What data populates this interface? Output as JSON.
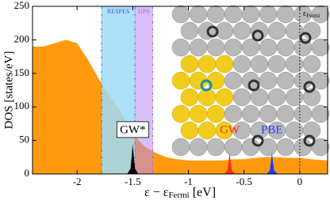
{
  "chart_data": {
    "type": "area",
    "xlabel": {
      "main": "ε − ε",
      "sub": "Fermi",
      "unit": " [eV]"
    },
    "ylabel": "DOS [states/eV]",
    "xlim": [
      -2.4,
      0.25
    ],
    "ylim": [
      0,
      250
    ],
    "xticks": [
      -2,
      -1.5,
      -1,
      -0.5,
      0
    ],
    "yticks": [
      0,
      50,
      100,
      150,
      200,
      250
    ],
    "grid": false,
    "series": [
      {
        "color": "#ff9a0e",
        "x": [
          -2.4,
          -2.3,
          -2.2,
          -2.1,
          -2.0,
          -1.9,
          -1.8,
          -1.7,
          -1.6,
          -1.5,
          -1.4,
          -1.3,
          -1.2,
          -1.1,
          -1.0,
          -0.9,
          -0.8,
          -0.7,
          -0.6,
          -0.5,
          -0.4,
          -0.3,
          -0.2,
          -0.1,
          0,
          0.1,
          0.25
        ],
        "values": [
          190,
          190,
          195,
          200,
          195,
          170,
          140,
          115,
          90,
          60,
          42,
          32,
          25,
          22,
          20,
          20,
          20,
          20,
          22,
          22,
          24,
          25,
          25,
          24,
          24,
          22,
          20
        ]
      },
      {
        "color": "#000000",
        "x": [
          -1.55,
          -1.52,
          -1.51,
          -1.5,
          -1.49,
          -1.48,
          -1.45
        ],
        "values": [
          0,
          8,
          25,
          45,
          25,
          8,
          0
        ]
      },
      {
        "color": "#ff2a1a",
        "x": [
          -0.68,
          -0.65,
          -0.64,
          -0.63,
          -0.62,
          -0.61,
          -0.58
        ],
        "values": [
          0,
          5,
          17,
          32,
          17,
          5,
          0
        ]
      },
      {
        "color": "#1a3cff",
        "x": [
          -0.3,
          -0.27,
          -0.26,
          -0.25,
          -0.24,
          -0.23,
          -0.2
        ],
        "values": [
          0,
          5,
          17,
          32,
          17,
          5,
          0
        ]
      }
    ],
    "regions": [
      {
        "label": "RESPES",
        "x": [
          -1.78,
          -1.48
        ],
        "color": "#9fdcf7",
        "text_color": "#3a5ccf"
      },
      {
        "label": "UPS",
        "x": [
          -1.48,
          -1.32
        ],
        "color": "#b68cf2",
        "text_color": "#9b5fe0"
      }
    ],
    "vline": {
      "x": 0,
      "label": {
        "main": "ε",
        "sub": "Fermi"
      }
    },
    "annotations": [
      {
        "text": "GW*",
        "x": -1.5,
        "y": 52,
        "color": "#000000",
        "boxed": true
      },
      {
        "text": "GW",
        "x": -0.63,
        "y": 52,
        "color": "#ff2a1a",
        "boxed": false
      },
      {
        "text": "PBE",
        "x": -0.25,
        "y": 52,
        "color": "#1a3cff",
        "boxed": false
      }
    ]
  }
}
